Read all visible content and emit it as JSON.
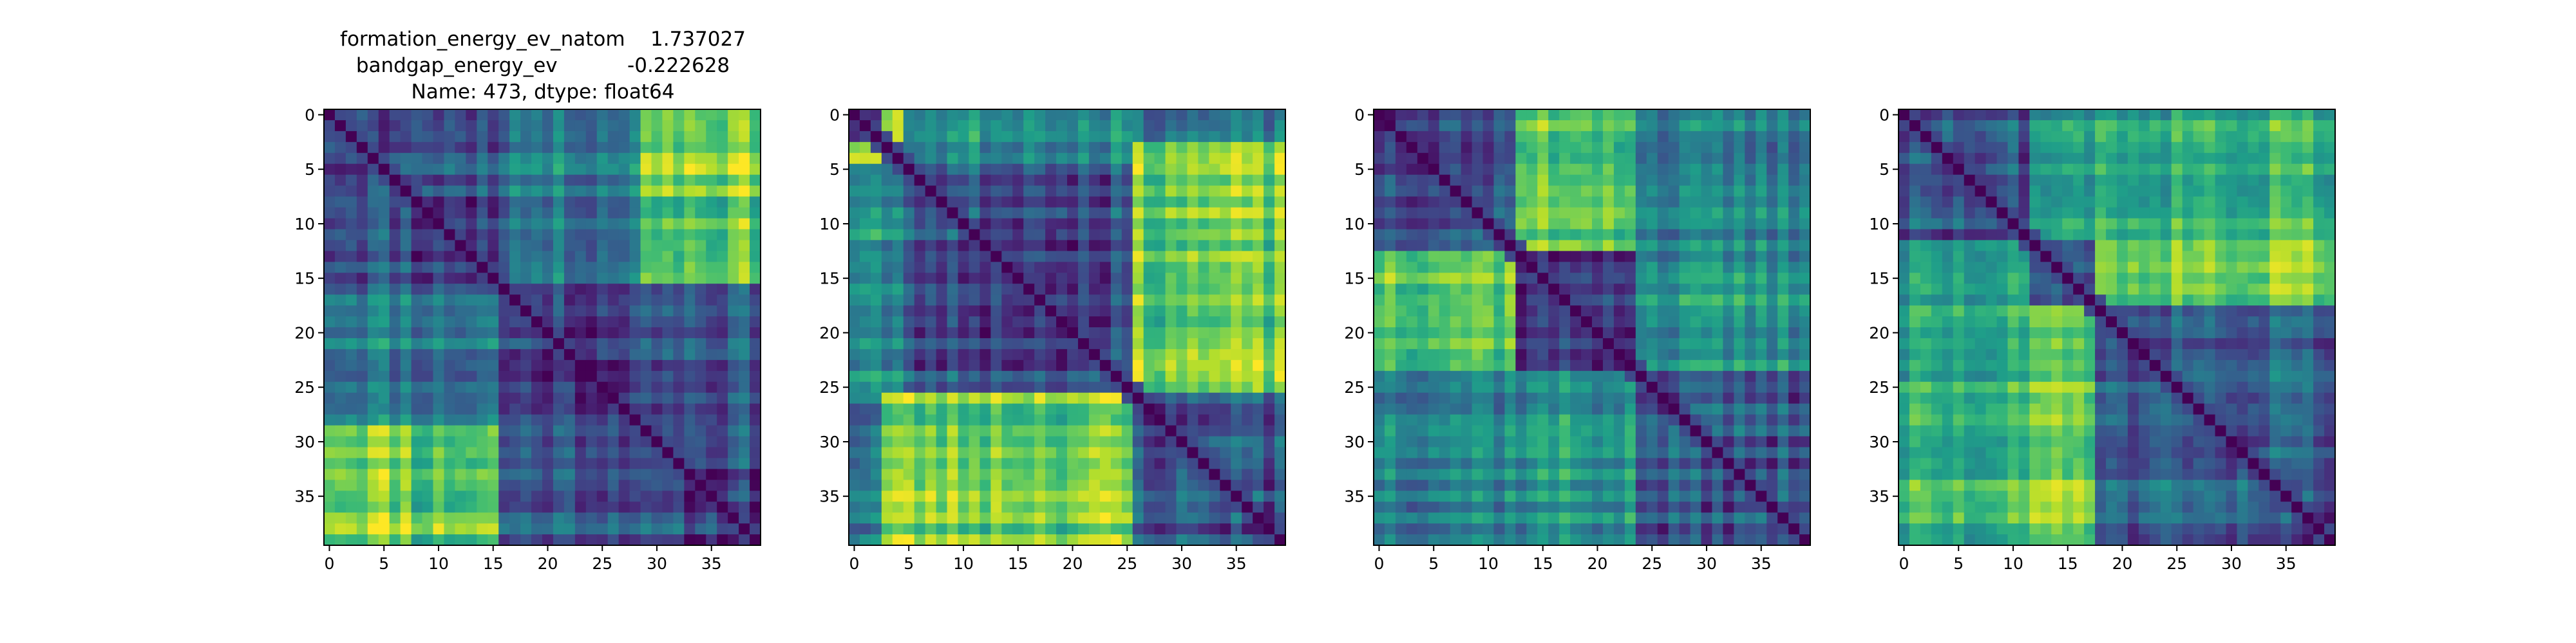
{
  "figure": {
    "title_lines": [
      "formation_energy_ev_natom    1.737027",
      "bandgap_energy_ev           -0.222628",
      "Name: 473, dtype: float64"
    ]
  },
  "chart_data": [
    {
      "type": "heatmap",
      "title": "",
      "rows": 40,
      "cols": 40,
      "xticks": [
        0,
        5,
        10,
        15,
        20,
        25,
        30,
        35
      ],
      "yticks": [
        0,
        5,
        10,
        15,
        20,
        25,
        30,
        35
      ],
      "colormap": "viridis",
      "value_range": [
        0,
        1
      ],
      "diagonal_value": 0,
      "blocks": [
        0,
        8,
        16,
        29,
        40
      ],
      "block_levels": [
        [
          0.25,
          0.3,
          0.45,
          0.85
        ],
        [
          0.3,
          0.22,
          0.4,
          0.75
        ],
        [
          0.45,
          0.4,
          0.2,
          0.3
        ],
        [
          0.85,
          0.75,
          0.3,
          0.2
        ]
      ],
      "seed": 11
    },
    {
      "type": "heatmap",
      "title": "",
      "rows": 40,
      "cols": 40,
      "xticks": [
        0,
        5,
        10,
        15,
        20,
        25,
        30,
        35
      ],
      "yticks": [
        0,
        5,
        10,
        15,
        20,
        25,
        30,
        35
      ],
      "colormap": "viridis",
      "value_range": [
        0,
        1
      ],
      "diagonal_value": 0,
      "blocks": [
        0,
        3,
        5,
        26,
        40
      ],
      "block_levels": [
        [
          0.2,
          0.85,
          0.55,
          0.4
        ],
        [
          0.85,
          0.2,
          0.45,
          0.8
        ],
        [
          0.55,
          0.45,
          0.25,
          0.78
        ],
        [
          0.4,
          0.8,
          0.78,
          0.25
        ]
      ],
      "seed": 23
    },
    {
      "type": "heatmap",
      "title": "",
      "rows": 40,
      "cols": 40,
      "xticks": [
        0,
        5,
        10,
        15,
        20,
        25,
        30,
        35
      ],
      "yticks": [
        0,
        5,
        10,
        15,
        20,
        25,
        30,
        35
      ],
      "colormap": "viridis",
      "value_range": [
        0,
        1
      ],
      "diagonal_value": 0,
      "blocks": [
        0,
        13,
        24,
        40
      ],
      "block_levels": [
        [
          0.25,
          0.8,
          0.45
        ],
        [
          0.8,
          0.22,
          0.5
        ],
        [
          0.45,
          0.5,
          0.25
        ]
      ],
      "seed": 37
    },
    {
      "type": "heatmap",
      "title": "",
      "rows": 40,
      "cols": 40,
      "xticks": [
        0,
        5,
        10,
        15,
        20,
        25,
        30,
        35
      ],
      "yticks": [
        0,
        5,
        10,
        15,
        20,
        25,
        30,
        35
      ],
      "colormap": "viridis",
      "value_range": [
        0,
        1
      ],
      "diagonal_value": 0,
      "blocks": [
        0,
        12,
        18,
        40
      ],
      "block_levels": [
        [
          0.25,
          0.55,
          0.62
        ],
        [
          0.55,
          0.3,
          0.82
        ],
        [
          0.62,
          0.82,
          0.25
        ]
      ],
      "seed": 51
    }
  ]
}
